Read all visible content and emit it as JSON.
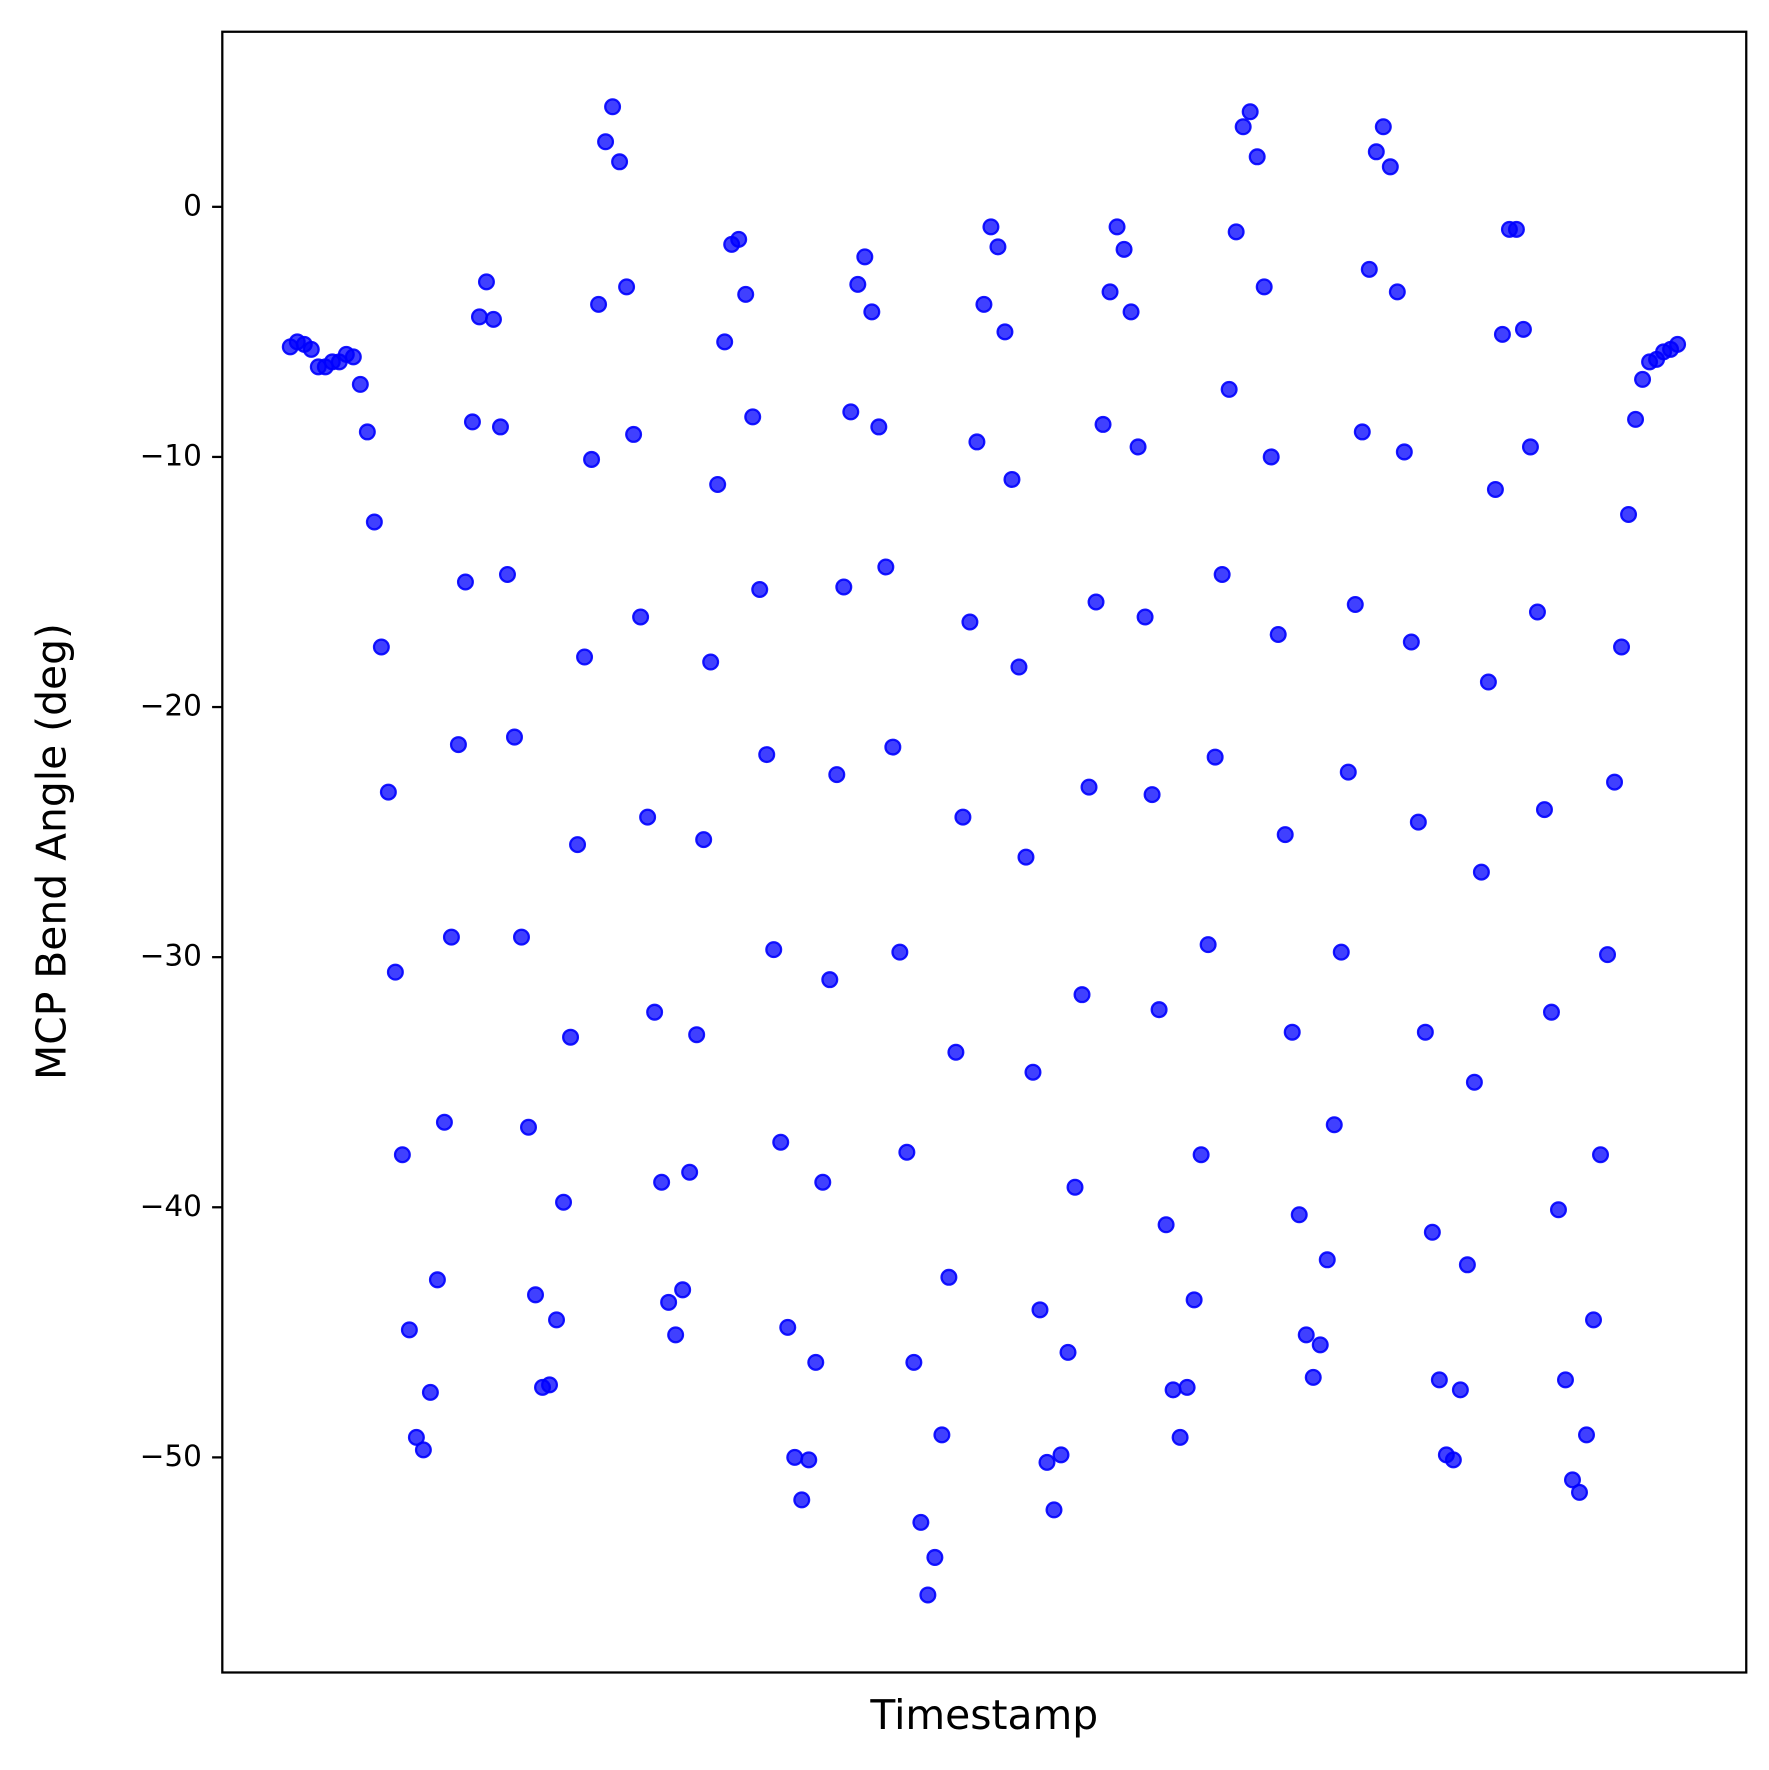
{
  "chart_data": {
    "type": "scatter",
    "xlabel": "Timestamp",
    "ylabel": "MCP Bend Angle (deg)",
    "color": "#0000ff",
    "xlim": [
      -9.7,
      207.8
    ],
    "ylim": [
      -58.6,
      7.0
    ],
    "yticks": [
      0,
      {
        "value": -10,
        "label": "−10"
      },
      {
        "value": -20,
        "label": "−20"
      },
      {
        "value": -30,
        "label": "−30"
      },
      {
        "value": -40,
        "label": "−40"
      },
      {
        "value": -50,
        "label": "−50"
      }
    ],
    "grid": false,
    "x": [
      0,
      1,
      2,
      3,
      4,
      5,
      6,
      7,
      8,
      9,
      10,
      11,
      12,
      13,
      14,
      15,
      16,
      17,
      18,
      19,
      20,
      21,
      22,
      23,
      24,
      25,
      26,
      27,
      28,
      29,
      30,
      31,
      32,
      33,
      34,
      35,
      36,
      37,
      38,
      39,
      40,
      41,
      42,
      43,
      44,
      45,
      46,
      47,
      48,
      49,
      50,
      51,
      52,
      53,
      54,
      55,
      56,
      57,
      58,
      59,
      60,
      61,
      62,
      63,
      64,
      65,
      66,
      67,
      68,
      69,
      70,
      71,
      72,
      73,
      74,
      75,
      76,
      77,
      78,
      79,
      80,
      81,
      82,
      83,
      84,
      85,
      86,
      87,
      88,
      89,
      90,
      91,
      92,
      93,
      94,
      95,
      96,
      97,
      98,
      99,
      100,
      101,
      102,
      103,
      104,
      105,
      106,
      107,
      108,
      109,
      110,
      111,
      112,
      113,
      114,
      115,
      116,
      117,
      118,
      119,
      120,
      121,
      122,
      123,
      124,
      125,
      126,
      127,
      128,
      129,
      130,
      131,
      132,
      133,
      134,
      135,
      136,
      137,
      138,
      139,
      140,
      141,
      142,
      143,
      144,
      145,
      146,
      147,
      148,
      149,
      150,
      151,
      152,
      153,
      154,
      155,
      156,
      157,
      158,
      159,
      160,
      161,
      162,
      163,
      164,
      165,
      166,
      167,
      168,
      169,
      170,
      171,
      172,
      173,
      174,
      175,
      176,
      177,
      178,
      179,
      180,
      181,
      182,
      183,
      184,
      185,
      186,
      187,
      188,
      189,
      190,
      191,
      192,
      193,
      194,
      195,
      196,
      197,
      198
    ],
    "values": [
      -5.6,
      -5.4,
      -5.5,
      -5.7,
      -6.4,
      -6.4,
      -6.2,
      -6.2,
      -5.9,
      -6.0,
      -7.1,
      -9.0,
      -12.6,
      -17.6,
      -23.4,
      -30.6,
      -37.9,
      -44.9,
      -49.2,
      -49.7,
      -47.4,
      -42.9,
      -36.6,
      -29.2,
      -21.5,
      -15.0,
      -8.6,
      -4.4,
      -3.0,
      -4.5,
      -8.8,
      -14.7,
      -21.2,
      -29.2,
      -36.8,
      -43.5,
      -47.2,
      -47.1,
      -44.5,
      -39.8,
      -33.2,
      -25.5,
      -18.0,
      -10.1,
      -3.9,
      2.6,
      4.0,
      1.8,
      -3.2,
      -9.1,
      -16.4,
      -24.4,
      -32.2,
      -39.0,
      -43.8,
      -45.1,
      -43.3,
      -38.6,
      -33.1,
      -25.3,
      -18.2,
      -11.1,
      -5.4,
      -1.5,
      -1.3,
      -3.5,
      -8.4,
      -15.3,
      -21.9,
      -29.7,
      -37.4,
      -44.8,
      -50.0,
      -51.7,
      -50.1,
      -46.2,
      -39.0,
      -30.9,
      -22.7,
      -15.2,
      -8.2,
      -3.1,
      -2.0,
      -4.2,
      -8.8,
      -14.4,
      -21.6,
      -29.8,
      -37.8,
      -46.2,
      -52.6,
      -55.5,
      -54.0,
      -49.1,
      -42.8,
      -33.8,
      -24.4,
      -16.6,
      -9.4,
      -3.9,
      -0.8,
      -1.6,
      -5.0,
      -10.9,
      -18.4,
      -26.0,
      -34.6,
      -44.1,
      -50.2,
      -52.1,
      -49.9,
      -45.8,
      -39.2,
      -31.5,
      -23.2,
      -15.8,
      -8.7,
      -3.4,
      -0.8,
      -1.7,
      -4.2,
      -9.6,
      -16.4,
      -23.5,
      -32.1,
      -40.7,
      -47.3,
      -49.2,
      -47.2,
      -43.7,
      -37.9,
      -29.5,
      -22.0,
      -14.7,
      -7.3,
      -1.0,
      3.2,
      3.8,
      2.0,
      -3.2,
      -10.0,
      -17.1,
      -25.1,
      -33.0,
      -40.3,
      -45.1,
      -46.8,
      -45.5,
      -42.1,
      -36.7,
      -29.8,
      -22.6,
      -15.9,
      -9.0,
      -2.5,
      2.2,
      3.2,
      1.6,
      -3.4,
      -9.8,
      -17.4,
      -24.6,
      -33.0,
      -41.0,
      -46.9,
      -49.9,
      -50.1,
      -47.3,
      -42.3,
      -35.0,
      -26.6,
      -19.0,
      -11.3,
      -5.1,
      -0.9,
      -0.9,
      -4.9,
      -9.6,
      -16.2,
      -24.1,
      -32.2,
      -40.1,
      -46.9,
      -50.9,
      -51.4,
      -49.1,
      -44.5,
      -37.9,
      -29.9,
      -23.0,
      -17.6,
      -12.3,
      -8.5,
      -6.9,
      -6.2,
      -6.1,
      -5.8,
      -5.7,
      -5.5
    ]
  }
}
